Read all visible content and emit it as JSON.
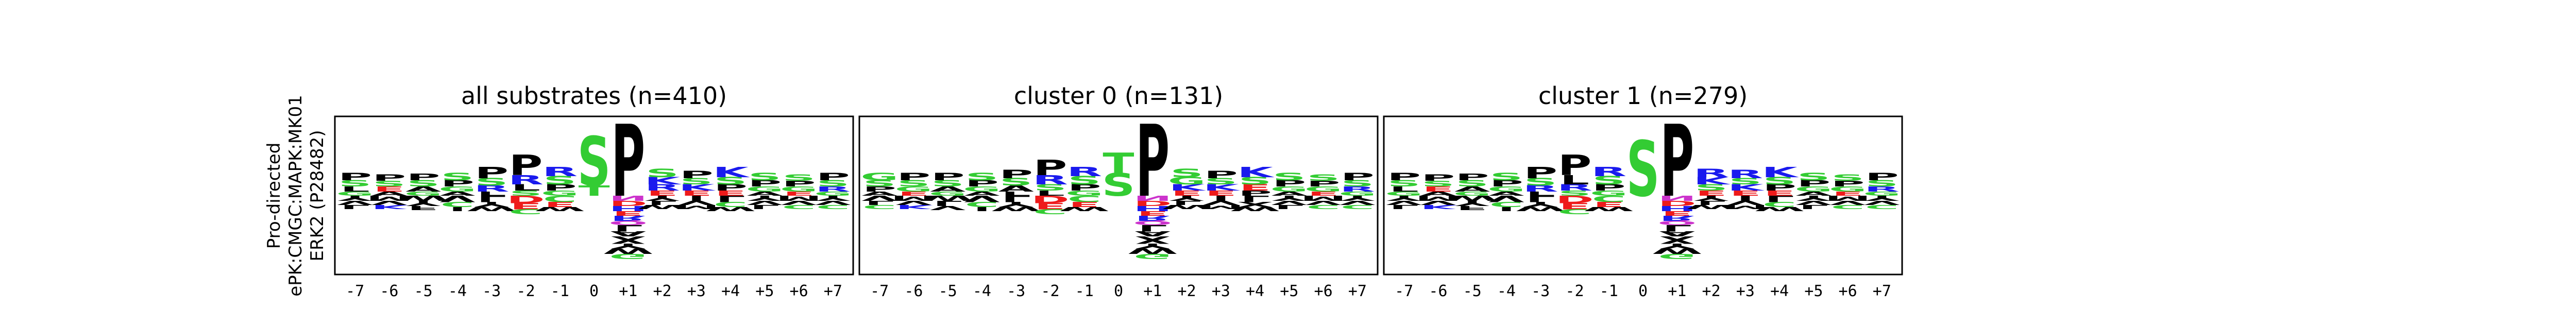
{
  "colors": {
    "S": "#33cc33",
    "T": "#33cc33",
    "P": "#000000",
    "K": "#1a1aee",
    "R": "#1a1aee",
    "H": "#1a1aee",
    "D": "#ee1a1a",
    "E": "#ee1a1a",
    "N": "#cc33cc",
    "Q": "#cc33cc",
    "G": "#33cc33",
    "C": "#33cc33",
    "A": "#000000",
    "V": "#000000",
    "L": "#000000",
    "I": "#000000",
    "M": "#000000",
    "F": "#000000",
    "W": "#000000",
    "Y": "#000000",
    "X": "#000000"
  },
  "chart_data": [
    {
      "type": "sequence-logo",
      "title": "all substrates (n=410)",
      "ylabel": [
        "Pro-directed",
        "ePK:CMGC:MAPK:MK01",
        "ERK2 (P28482)"
      ],
      "positions": [
        "-7",
        "-6",
        "-5",
        "-4",
        "-3",
        "-2",
        "-1",
        "0",
        "+1",
        "+2",
        "+3",
        "+4",
        "+5",
        "+6",
        "+7"
      ],
      "above": [
        [
          "P",
          "S",
          "L",
          "G"
        ],
        [
          "P",
          "S",
          "E",
          "A"
        ],
        [
          "P",
          "S",
          "A",
          "G"
        ],
        [
          "S",
          "P",
          "G",
          "A"
        ],
        [
          "P",
          "S",
          "R",
          "L"
        ],
        [
          "P",
          "R",
          "L",
          "S"
        ],
        [
          "R",
          "S",
          "P",
          "G"
        ],
        [
          "S",
          "T"
        ],
        [
          "P"
        ],
        [
          "S",
          "K",
          "R",
          "E"
        ],
        [
          "P",
          "S",
          "K",
          "E"
        ],
        [
          "K",
          "S",
          "P",
          "E"
        ],
        [
          "S",
          "P",
          "G",
          "A"
        ],
        [
          "S",
          "P",
          "G",
          "E"
        ],
        [
          "P",
          "S",
          "R",
          "G"
        ]
      ],
      "above_h": [
        [
          0.35,
          0.3,
          0.25,
          0.2
        ],
        [
          0.3,
          0.28,
          0.25,
          0.2
        ],
        [
          0.32,
          0.3,
          0.25,
          0.2
        ],
        [
          0.35,
          0.3,
          0.25,
          0.2
        ],
        [
          0.55,
          0.35,
          0.3,
          0.2
        ],
        [
          1.0,
          0.45,
          0.3,
          0.25
        ],
        [
          0.45,
          0.4,
          0.3,
          0.25
        ],
        [
          2.4,
          0.5
        ],
        [
          3.5
        ],
        [
          0.4,
          0.35,
          0.3,
          0.25
        ],
        [
          0.35,
          0.3,
          0.3,
          0.25
        ],
        [
          0.5,
          0.35,
          0.3,
          0.25
        ],
        [
          0.35,
          0.3,
          0.25,
          0.2
        ],
        [
          0.3,
          0.28,
          0.25,
          0.2
        ],
        [
          0.35,
          0.3,
          0.25,
          0.2
        ]
      ],
      "below": [
        [
          "Y",
          "V",
          "L"
        ],
        [
          "M",
          "V",
          "K"
        ],
        [
          "W",
          "Y",
          "F"
        ],
        [
          "V",
          "C",
          "I"
        ],
        [
          "L",
          "Y",
          "W"
        ],
        [
          "D",
          "E",
          "C"
        ],
        [
          "C",
          "E",
          "W"
        ],
        [],
        [
          "N",
          "D",
          "H",
          "E",
          "R",
          "Q",
          "L",
          "A",
          "X",
          "Y",
          "W",
          "G"
        ],
        [
          "Y",
          "L",
          "W"
        ],
        [
          "I",
          "V",
          "M"
        ],
        [
          "L",
          "C",
          "W"
        ],
        [
          "Y",
          "V",
          "L"
        ],
        [
          "M",
          "V",
          "C"
        ],
        [
          "Y",
          "V",
          "C"
        ]
      ],
      "below_h": [
        [
          0.25,
          0.2,
          0.2
        ],
        [
          0.25,
          0.2,
          0.2
        ],
        [
          0.25,
          0.25,
          0.2
        ],
        [
          0.3,
          0.25,
          0.2
        ],
        [
          0.3,
          0.25,
          0.2
        ],
        [
          0.35,
          0.3,
          0.25
        ],
        [
          0.3,
          0.25,
          0.2
        ],
        [],
        [
          0.25,
          0.25,
          0.25,
          0.22,
          0.25,
          0.2,
          0.3,
          0.25,
          0.35,
          0.25,
          0.25,
          0.25
        ],
        [
          0.25,
          0.2,
          0.2
        ],
        [
          0.25,
          0.2,
          0.2
        ],
        [
          0.3,
          0.25,
          0.2
        ],
        [
          0.25,
          0.2,
          0.2
        ],
        [
          0.25,
          0.2,
          0.2
        ],
        [
          0.25,
          0.2,
          0.2
        ]
      ]
    },
    {
      "type": "sequence-logo",
      "title": "cluster 0 (n=131)",
      "positions": [
        "-7",
        "-6",
        "-5",
        "-4",
        "-3",
        "-2",
        "-1",
        "0",
        "+1",
        "+2",
        "+3",
        "+4",
        "+5",
        "+6",
        "+7"
      ],
      "above": [
        [
          "G",
          "S",
          "P",
          "A"
        ],
        [
          "P",
          "S",
          "G",
          "E"
        ],
        [
          "P",
          "S",
          "A",
          "G"
        ],
        [
          "S",
          "P",
          "G",
          "A"
        ],
        [
          "P",
          "S",
          "A",
          "L"
        ],
        [
          "P",
          "R",
          "S",
          "L"
        ],
        [
          "R",
          "S",
          "P",
          "G"
        ],
        [
          "T",
          "S"
        ],
        [
          "P"
        ],
        [
          "S",
          "G",
          "K",
          "E"
        ],
        [
          "P",
          "S",
          "K",
          "E"
        ],
        [
          "K",
          "S",
          "E",
          "P"
        ],
        [
          "S",
          "P",
          "G",
          "A"
        ],
        [
          "S",
          "P",
          "G",
          "E"
        ],
        [
          "P",
          "S",
          "R",
          "G"
        ]
      ],
      "above_h": [
        [
          0.35,
          0.3,
          0.25,
          0.2
        ],
        [
          0.35,
          0.3,
          0.25,
          0.2
        ],
        [
          0.35,
          0.3,
          0.25,
          0.2
        ],
        [
          0.35,
          0.3,
          0.25,
          0.2
        ],
        [
          0.4,
          0.35,
          0.3,
          0.2
        ],
        [
          0.75,
          0.45,
          0.3,
          0.25
        ],
        [
          0.45,
          0.4,
          0.3,
          0.25
        ],
        [
          1.0,
          1.1
        ],
        [
          3.5
        ],
        [
          0.4,
          0.35,
          0.3,
          0.25
        ],
        [
          0.35,
          0.3,
          0.3,
          0.25
        ],
        [
          0.5,
          0.35,
          0.3,
          0.25
        ],
        [
          0.35,
          0.3,
          0.25,
          0.2
        ],
        [
          0.3,
          0.28,
          0.25,
          0.2
        ],
        [
          0.35,
          0.3,
          0.25,
          0.2
        ]
      ],
      "below": [
        [
          "V",
          "L",
          "C"
        ],
        [
          "M",
          "V",
          "K"
        ],
        [
          "W",
          "L",
          "V"
        ],
        [
          "V",
          "C",
          "I"
        ],
        [
          "L",
          "Y",
          "W"
        ],
        [
          "D",
          "E",
          "C"
        ],
        [
          "C",
          "E",
          "W"
        ],
        [],
        [
          "N",
          "D",
          "H",
          "E",
          "R",
          "Q",
          "L",
          "A",
          "X",
          "Y",
          "W",
          "G"
        ],
        [
          "Y",
          "L",
          "W"
        ],
        [
          "I",
          "V",
          "M"
        ],
        [
          "L",
          "X",
          "W"
        ],
        [
          "Y",
          "V",
          "L"
        ],
        [
          "M",
          "V",
          "C"
        ],
        [
          "Y",
          "V",
          "C"
        ]
      ],
      "below_h": [
        [
          0.25,
          0.2,
          0.2
        ],
        [
          0.25,
          0.2,
          0.2
        ],
        [
          0.25,
          0.25,
          0.2
        ],
        [
          0.3,
          0.25,
          0.2
        ],
        [
          0.3,
          0.25,
          0.2
        ],
        [
          0.35,
          0.3,
          0.25
        ],
        [
          0.3,
          0.25,
          0.2
        ],
        [],
        [
          0.25,
          0.25,
          0.25,
          0.22,
          0.25,
          0.2,
          0.3,
          0.25,
          0.35,
          0.25,
          0.25,
          0.25
        ],
        [
          0.25,
          0.2,
          0.2
        ],
        [
          0.25,
          0.2,
          0.2
        ],
        [
          0.3,
          0.25,
          0.2
        ],
        [
          0.25,
          0.2,
          0.2
        ],
        [
          0.25,
          0.2,
          0.2
        ],
        [
          0.25,
          0.2,
          0.2
        ]
      ]
    },
    {
      "type": "sequence-logo",
      "title": "cluster 1 (n=279)",
      "positions": [
        "-7",
        "-6",
        "-5",
        "-4",
        "-3",
        "-2",
        "-1",
        "0",
        "+1",
        "+2",
        "+3",
        "+4",
        "+5",
        "+6",
        "+7"
      ],
      "above": [
        [
          "P",
          "S",
          "L",
          "G"
        ],
        [
          "P",
          "S",
          "E",
          "A"
        ],
        [
          "P",
          "S",
          "A",
          "G"
        ],
        [
          "S",
          "P",
          "G",
          "A"
        ],
        [
          "P",
          "S",
          "R",
          "L"
        ],
        [
          "P",
          "L",
          "R",
          "S"
        ],
        [
          "R",
          "S",
          "P",
          "G"
        ],
        [
          "S"
        ],
        [
          "P"
        ],
        [
          "R",
          "K",
          "S",
          "E"
        ],
        [
          "R",
          "S",
          "K",
          "E"
        ],
        [
          "K",
          "S",
          "P",
          "E"
        ],
        [
          "S",
          "P",
          "G",
          "A"
        ],
        [
          "S",
          "P",
          "G",
          "E"
        ],
        [
          "P",
          "S",
          "R",
          "G"
        ]
      ],
      "above_h": [
        [
          0.35,
          0.3,
          0.25,
          0.2
        ],
        [
          0.3,
          0.28,
          0.25,
          0.2
        ],
        [
          0.32,
          0.3,
          0.25,
          0.2
        ],
        [
          0.35,
          0.3,
          0.25,
          0.2
        ],
        [
          0.55,
          0.35,
          0.3,
          0.2
        ],
        [
          1.0,
          0.45,
          0.3,
          0.25
        ],
        [
          0.45,
          0.4,
          0.3,
          0.25
        ],
        [
          2.7
        ],
        [
          3.5
        ],
        [
          0.4,
          0.35,
          0.3,
          0.25
        ],
        [
          0.4,
          0.3,
          0.3,
          0.25
        ],
        [
          0.5,
          0.35,
          0.3,
          0.25
        ],
        [
          0.35,
          0.3,
          0.25,
          0.2
        ],
        [
          0.3,
          0.28,
          0.25,
          0.2
        ],
        [
          0.35,
          0.3,
          0.25,
          0.2
        ]
      ],
      "below": [
        [
          "Y",
          "V",
          "L"
        ],
        [
          "M",
          "V",
          "K"
        ],
        [
          "W",
          "Y",
          "F"
        ],
        [
          "V",
          "C",
          "I"
        ],
        [
          "L",
          "Y",
          "W"
        ],
        [
          "D",
          "E",
          "C"
        ],
        [
          "C",
          "E",
          "W"
        ],
        [],
        [
          "N",
          "D",
          "H",
          "E",
          "R",
          "Q",
          "L",
          "A",
          "X",
          "Y",
          "W",
          "G"
        ],
        [
          "Y",
          "L",
          "W"
        ],
        [
          "I",
          "V",
          "M"
        ],
        [
          "L",
          "C",
          "W"
        ],
        [
          "Y",
          "V",
          "L"
        ],
        [
          "M",
          "V",
          "C"
        ],
        [
          "Y",
          "V",
          "C"
        ]
      ],
      "below_h": [
        [
          0.25,
          0.2,
          0.2
        ],
        [
          0.25,
          0.2,
          0.2
        ],
        [
          0.25,
          0.25,
          0.2
        ],
        [
          0.3,
          0.25,
          0.2
        ],
        [
          0.3,
          0.25,
          0.2
        ],
        [
          0.35,
          0.3,
          0.25
        ],
        [
          0.3,
          0.25,
          0.2
        ],
        [],
        [
          0.25,
          0.25,
          0.25,
          0.22,
          0.25,
          0.2,
          0.3,
          0.25,
          0.35,
          0.25,
          0.25,
          0.25
        ],
        [
          0.25,
          0.2,
          0.2
        ],
        [
          0.25,
          0.2,
          0.2
        ],
        [
          0.3,
          0.25,
          0.2
        ],
        [
          0.25,
          0.2,
          0.2
        ],
        [
          0.25,
          0.2,
          0.2
        ],
        [
          0.25,
          0.2,
          0.2
        ]
      ]
    }
  ]
}
